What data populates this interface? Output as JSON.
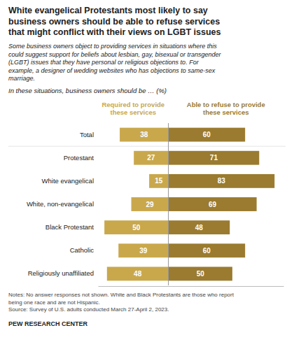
{
  "chart_data": {
    "type": "bar",
    "orientation": "horizontal",
    "title": "White evangelical Protestants most likely to say\nbusiness owners should be able to refuse services\nthat might conflict with their views on LGBT issues",
    "subtitle": "Some business owners object to providing services in situations where this\ncould suggest support for beliefs about lesbian, gay, bisexual or transgender\n(LGBT) issues that they have personal or religious objections to. For\nexample, a designer of wedding websites who has objections to same-sex\nmarriage.",
    "annotations": [
      "In these situations, business owners should be … (%)",
      "Notes: No answer responses not shown. White and Black Protestants are those who report\nbeing one race and are not Hispanic.\nSource: Survey of U.S. adults conducted March 27-April 2, 2023.",
      "PEW RESEARCH CENTER"
    ],
    "categories": [
      "Total",
      "Protestant",
      "White evangelical",
      "White, non-evangelical",
      "Black Protestant",
      "Catholic",
      "Religiously unaffiliated"
    ],
    "series": [
      {
        "name": "Required to provide\nthese services",
        "color": "#c9a84c",
        "values": [
          38,
          27,
          15,
          29,
          50,
          39,
          48
        ]
      },
      {
        "name": "Able to refuse to provide\nthese services",
        "color": "#9a7b2f",
        "values": [
          60,
          71,
          83,
          69,
          48,
          60,
          50
        ]
      }
    ],
    "xlim": [
      -55,
      90
    ],
    "tick_labels": false,
    "data_labels": true,
    "legend": "top"
  }
}
